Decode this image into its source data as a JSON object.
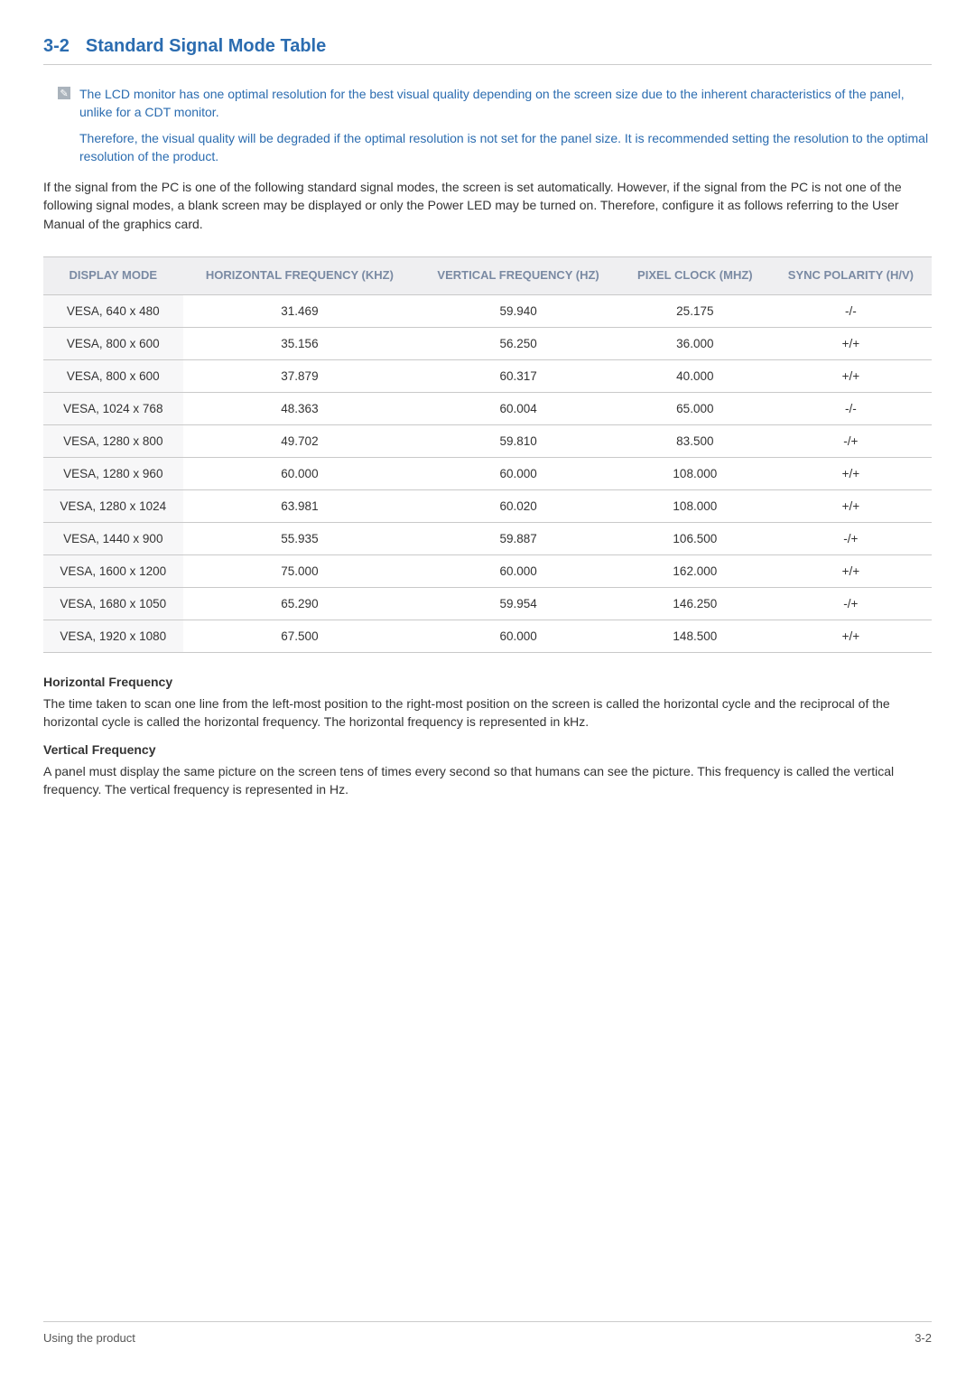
{
  "section": {
    "number": "3-2",
    "title": "Standard Signal Mode Table"
  },
  "info": {
    "para1": "The LCD monitor has one optimal resolution for the best visual quality depending on the screen size due to the inherent characteristics of the panel, unlike for a CDT monitor.",
    "para2": "Therefore, the visual quality will be degraded if the optimal resolution is not set for the panel size. It is recommended setting the resolution to the optimal resolution of the product."
  },
  "intro": "If the signal from the PC is one of the following standard signal modes, the screen is set automatically. However, if the signal from the PC is not one of the following signal modes, a blank screen may be displayed or only the Power LED may be turned on. Therefore, configure it as follows referring to the User Manual of the graphics card.",
  "table": {
    "columns": [
      "DISPLAY MODE",
      "HORIZONTAL FREQUENCY (KHZ)",
      "VERTICAL FREQUENCY  (HZ)",
      "PIXEL CLOCK (MHZ)",
      "SYNC POLARITY (H/V)"
    ],
    "rows": [
      [
        "VESA, 640 x 480",
        "31.469",
        "59.940",
        "25.175",
        "-/-"
      ],
      [
        "VESA, 800 x 600",
        "35.156",
        "56.250",
        "36.000",
        "+/+"
      ],
      [
        "VESA, 800 x 600",
        "37.879",
        "60.317",
        "40.000",
        "+/+"
      ],
      [
        "VESA, 1024 x 768",
        "48.363",
        "60.004",
        "65.000",
        "-/-"
      ],
      [
        "VESA, 1280 x 800",
        "49.702",
        "59.810",
        "83.500",
        "-/+"
      ],
      [
        "VESA, 1280 x 960",
        "60.000",
        "60.000",
        "108.000",
        "+/+"
      ],
      [
        "VESA, 1280 x 1024",
        "63.981",
        "60.020",
        "108.000",
        "+/+"
      ],
      [
        "VESA, 1440 x 900",
        "55.935",
        "59.887",
        "106.500",
        "-/+"
      ],
      [
        "VESA, 1600 x 1200",
        "75.000",
        "60.000",
        "162.000",
        "+/+"
      ],
      [
        "VESA, 1680 x 1050",
        "65.290",
        "59.954",
        "146.250",
        "-/+"
      ],
      [
        "VESA, 1920 x 1080",
        "67.500",
        "60.000",
        "148.500",
        "+/+"
      ]
    ]
  },
  "hf": {
    "heading": "Horizontal Frequency",
    "text": "The time taken to scan one line from the left-most position to the right-most position on the screen is called the horizontal cycle and the reciprocal of the horizontal cycle is called the horizontal frequency. The horizontal frequency is represented in kHz."
  },
  "vf": {
    "heading": "Vertical Frequency",
    "text": "A panel must display the same picture on the screen tens of times every second so that humans can see the picture. This frequency is called the vertical frequency. The vertical frequency is represented in Hz."
  },
  "footer": {
    "left": "Using the product",
    "right": "3-2"
  },
  "colors": {
    "heading_color": "#2b6cb0",
    "info_text_color": "#2b6cb0",
    "body_text_color": "#333333",
    "th_bg": "#efeff1",
    "th_color": "#7a8aa3",
    "row_first_col_bg": "#f7f7f8",
    "border_color": "#c9c9c9",
    "icon_bg": "#aab3bc"
  },
  "typography": {
    "heading_fontsize_pt": 15,
    "body_fontsize_pt": 10.5,
    "th_fontsize_pt": 10,
    "td_fontsize_pt": 10
  }
}
